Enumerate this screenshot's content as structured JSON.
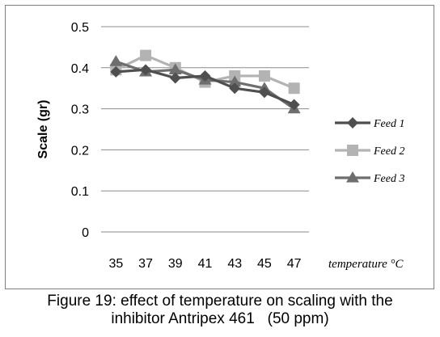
{
  "chart_data": {
    "type": "line",
    "categories": [
      "35",
      "37",
      "39",
      "41",
      "43",
      "45",
      "47"
    ],
    "ylabel": "Scale (gr)",
    "xlabel": "temperature °C",
    "ylim": [
      0,
      0.5
    ],
    "yticks": [
      "0",
      "0.1",
      "0.2",
      "0.3",
      "0.4",
      "0.5"
    ],
    "grid": true,
    "legend_position": "right",
    "series": [
      {
        "name": "Feed 1",
        "values": [
          0.39,
          0.395,
          0.375,
          0.38,
          0.35,
          0.34,
          0.31
        ],
        "color": "#4f4f4f",
        "marker": "diamond"
      },
      {
        "name": "Feed 2",
        "values": [
          0.395,
          0.43,
          0.4,
          0.365,
          0.38,
          0.38,
          0.35
        ],
        "color": "#b3b3b3",
        "marker": "square"
      },
      {
        "name": "Feed 3",
        "values": [
          0.415,
          0.39,
          0.395,
          0.37,
          0.365,
          0.35,
          0.3
        ],
        "color": "#6e6e6e",
        "marker": "triangle"
      }
    ]
  },
  "caption": {
    "line1": "Figure 19: effect of temperature on scaling with the",
    "line2": "inhibitor Antripex 461   (50 ppm)"
  }
}
